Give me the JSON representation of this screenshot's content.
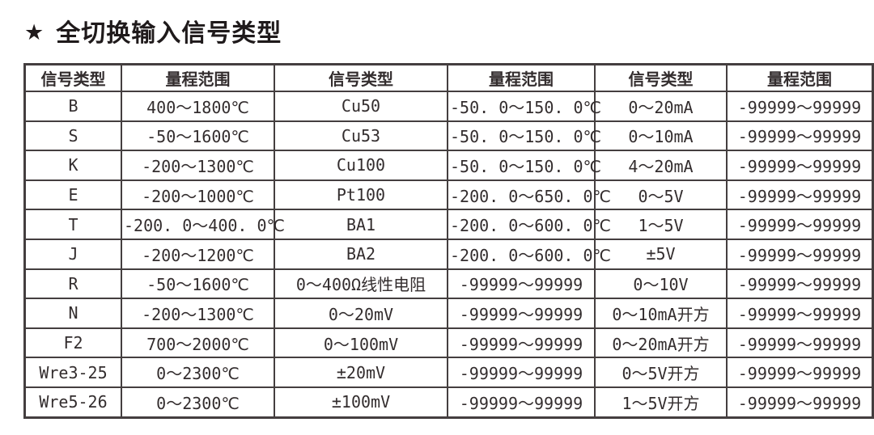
{
  "title": {
    "star": "★",
    "text": "全切换输入信号类型"
  },
  "table": {
    "headers": [
      "信号类型",
      "量程范围",
      "信号类型",
      "量程范围",
      "信号类型",
      "量程范围"
    ],
    "rows": [
      [
        "B",
        "400～1800℃",
        "Cu50",
        "-50. 0～150. 0℃",
        "0～20mA",
        "-99999～99999"
      ],
      [
        "S",
        "-50～1600℃",
        "Cu53",
        "-50. 0～150. 0℃",
        "0～10mA",
        "-99999～99999"
      ],
      [
        "K",
        "-200～1300℃",
        "Cu100",
        "-50. 0～150. 0℃",
        "4～20mA",
        "-99999～99999"
      ],
      [
        "E",
        "-200～1000℃",
        "Pt100",
        "-200. 0～650. 0℃",
        "0～5V",
        "-99999～99999"
      ],
      [
        "T",
        "-200. 0～400. 0℃",
        "BA1",
        "-200. 0～600. 0℃",
        "1～5V",
        "-99999～99999"
      ],
      [
        "J",
        "-200～1200℃",
        "BA2",
        "-200. 0～600. 0℃",
        "±5V",
        "-99999～99999"
      ],
      [
        "R",
        "-50～1600℃",
        "0～400Ω线性电阻",
        "-99999～99999",
        "0～10V",
        "-99999～99999"
      ],
      [
        "N",
        "-200～1300℃",
        "0～20mV",
        "-99999～99999",
        "0～10mA开方",
        "-99999～99999"
      ],
      [
        "F2",
        "700～2000℃",
        "0～100mV",
        "-99999～99999",
        "0～20mA开方",
        "-99999～99999"
      ],
      [
        "Wre3-25",
        "0～2300℃",
        "±20mV",
        "-99999～99999",
        "0～5V开方",
        "-99999～99999"
      ],
      [
        "Wre5-26",
        "0～2300℃",
        "±100mV",
        "-99999～99999",
        "1～5V开方",
        "-99999～99999"
      ]
    ]
  },
  "colors": {
    "text": "#332d2e",
    "border": "#443e3f",
    "background": "#ffffff"
  }
}
